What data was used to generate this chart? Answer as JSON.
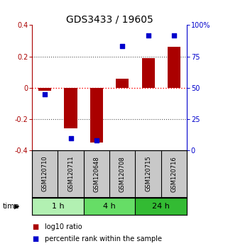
{
  "title": "GDS3433 / 19605",
  "samples": [
    "GSM120710",
    "GSM120711",
    "GSM120648",
    "GSM120708",
    "GSM120715",
    "GSM120716"
  ],
  "log10_ratio": [
    -0.02,
    -0.26,
    -0.35,
    0.06,
    0.19,
    0.26
  ],
  "percentile_rank": [
    45,
    10,
    8,
    83,
    92,
    92
  ],
  "groups": [
    {
      "label": "1 h",
      "indices": [
        0,
        1
      ],
      "color": "#b2f0b2"
    },
    {
      "label": "4 h",
      "indices": [
        2,
        3
      ],
      "color": "#66dd66"
    },
    {
      "label": "24 h",
      "indices": [
        4,
        5
      ],
      "color": "#33bb33"
    }
  ],
  "bar_color": "#aa0000",
  "dot_color": "#0000cc",
  "bar_width": 0.5,
  "ylim_left": [
    -0.4,
    0.4
  ],
  "ylim_right": [
    0,
    100
  ],
  "yticks_left": [
    -0.4,
    -0.2,
    0.0,
    0.2,
    0.4
  ],
  "yticks_right": [
    0,
    25,
    50,
    75,
    100
  ],
  "ytick_labels_right": [
    "0",
    "25",
    "50",
    "75",
    "100%"
  ],
  "title_fontsize": 10,
  "tick_fontsize": 7,
  "sample_label_fontsize": 6,
  "group_label_fontsize": 8,
  "legend_fontsize": 7,
  "bg_color": "#c8c8c8",
  "plot_bg_color": "#ffffff",
  "time_label": "time",
  "legend_items": [
    "log10 ratio",
    "percentile rank within the sample"
  ]
}
